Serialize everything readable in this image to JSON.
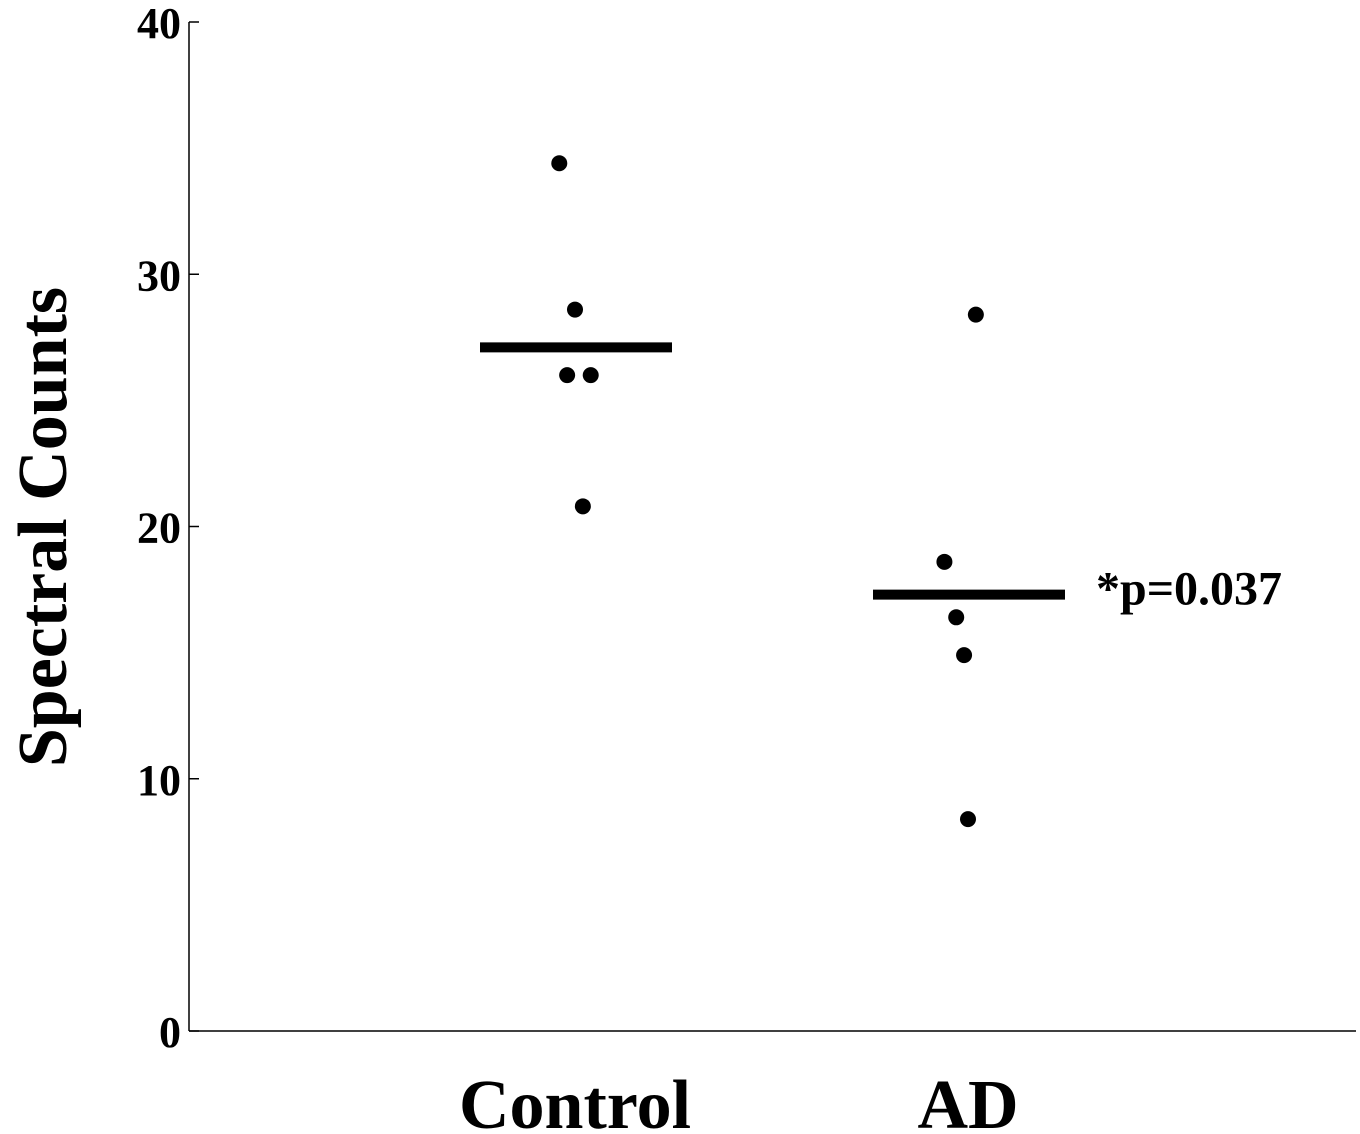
{
  "chart_data": {
    "type": "scatter",
    "title": "",
    "xlabel": "",
    "ylabel": "Spectral Counts",
    "ylim": [
      0,
      40
    ],
    "yticks": [
      0,
      10,
      20,
      30,
      40
    ],
    "grid": false,
    "categories": [
      "Control",
      "AD"
    ],
    "series": [
      {
        "category": "Control",
        "points": [
          {
            "offset": -0.08,
            "value": 34.4
          },
          {
            "offset": 0.0,
            "value": 28.6
          },
          {
            "offset": -0.04,
            "value": 26.0
          },
          {
            "offset": 0.08,
            "value": 26.0
          },
          {
            "offset": 0.04,
            "value": 20.8
          }
        ],
        "mean": 27.1
      },
      {
        "category": "AD",
        "points": [
          {
            "offset": 0.04,
            "value": 28.4
          },
          {
            "offset": -0.12,
            "value": 18.6
          },
          {
            "offset": -0.06,
            "value": 16.4
          },
          {
            "offset": -0.02,
            "value": 14.9
          },
          {
            "offset": 0.0,
            "value": 8.4
          }
        ],
        "mean": 17.3
      }
    ],
    "annotations": [
      {
        "text": "*p=0.037",
        "category": "AD",
        "value": 17.3
      }
    ],
    "colors": {
      "marker": "#000000",
      "axis": "#000000"
    }
  }
}
